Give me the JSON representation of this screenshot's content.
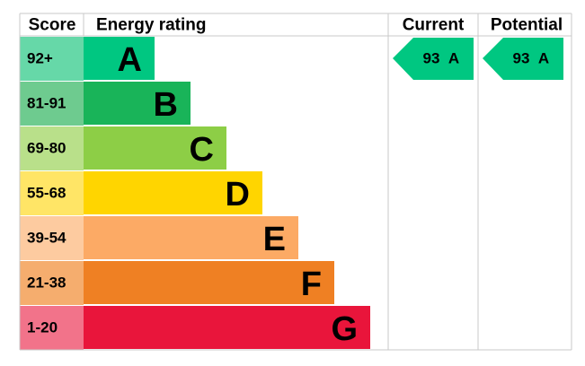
{
  "header": {
    "score": "Score",
    "energy_rating": "Energy rating",
    "current": "Current",
    "potential": "Potential"
  },
  "bands": [
    {
      "score": "92+",
      "letter": "A"
    },
    {
      "score": "81-91",
      "letter": "B"
    },
    {
      "score": "69-80",
      "letter": "C"
    },
    {
      "score": "55-68",
      "letter": "D"
    },
    {
      "score": "39-54",
      "letter": "E"
    },
    {
      "score": "21-38",
      "letter": "F"
    },
    {
      "score": "1-20",
      "letter": "G"
    }
  ],
  "current": {
    "score": "93",
    "rating": "A"
  },
  "potential": {
    "score": "93",
    "rating": "A"
  }
}
